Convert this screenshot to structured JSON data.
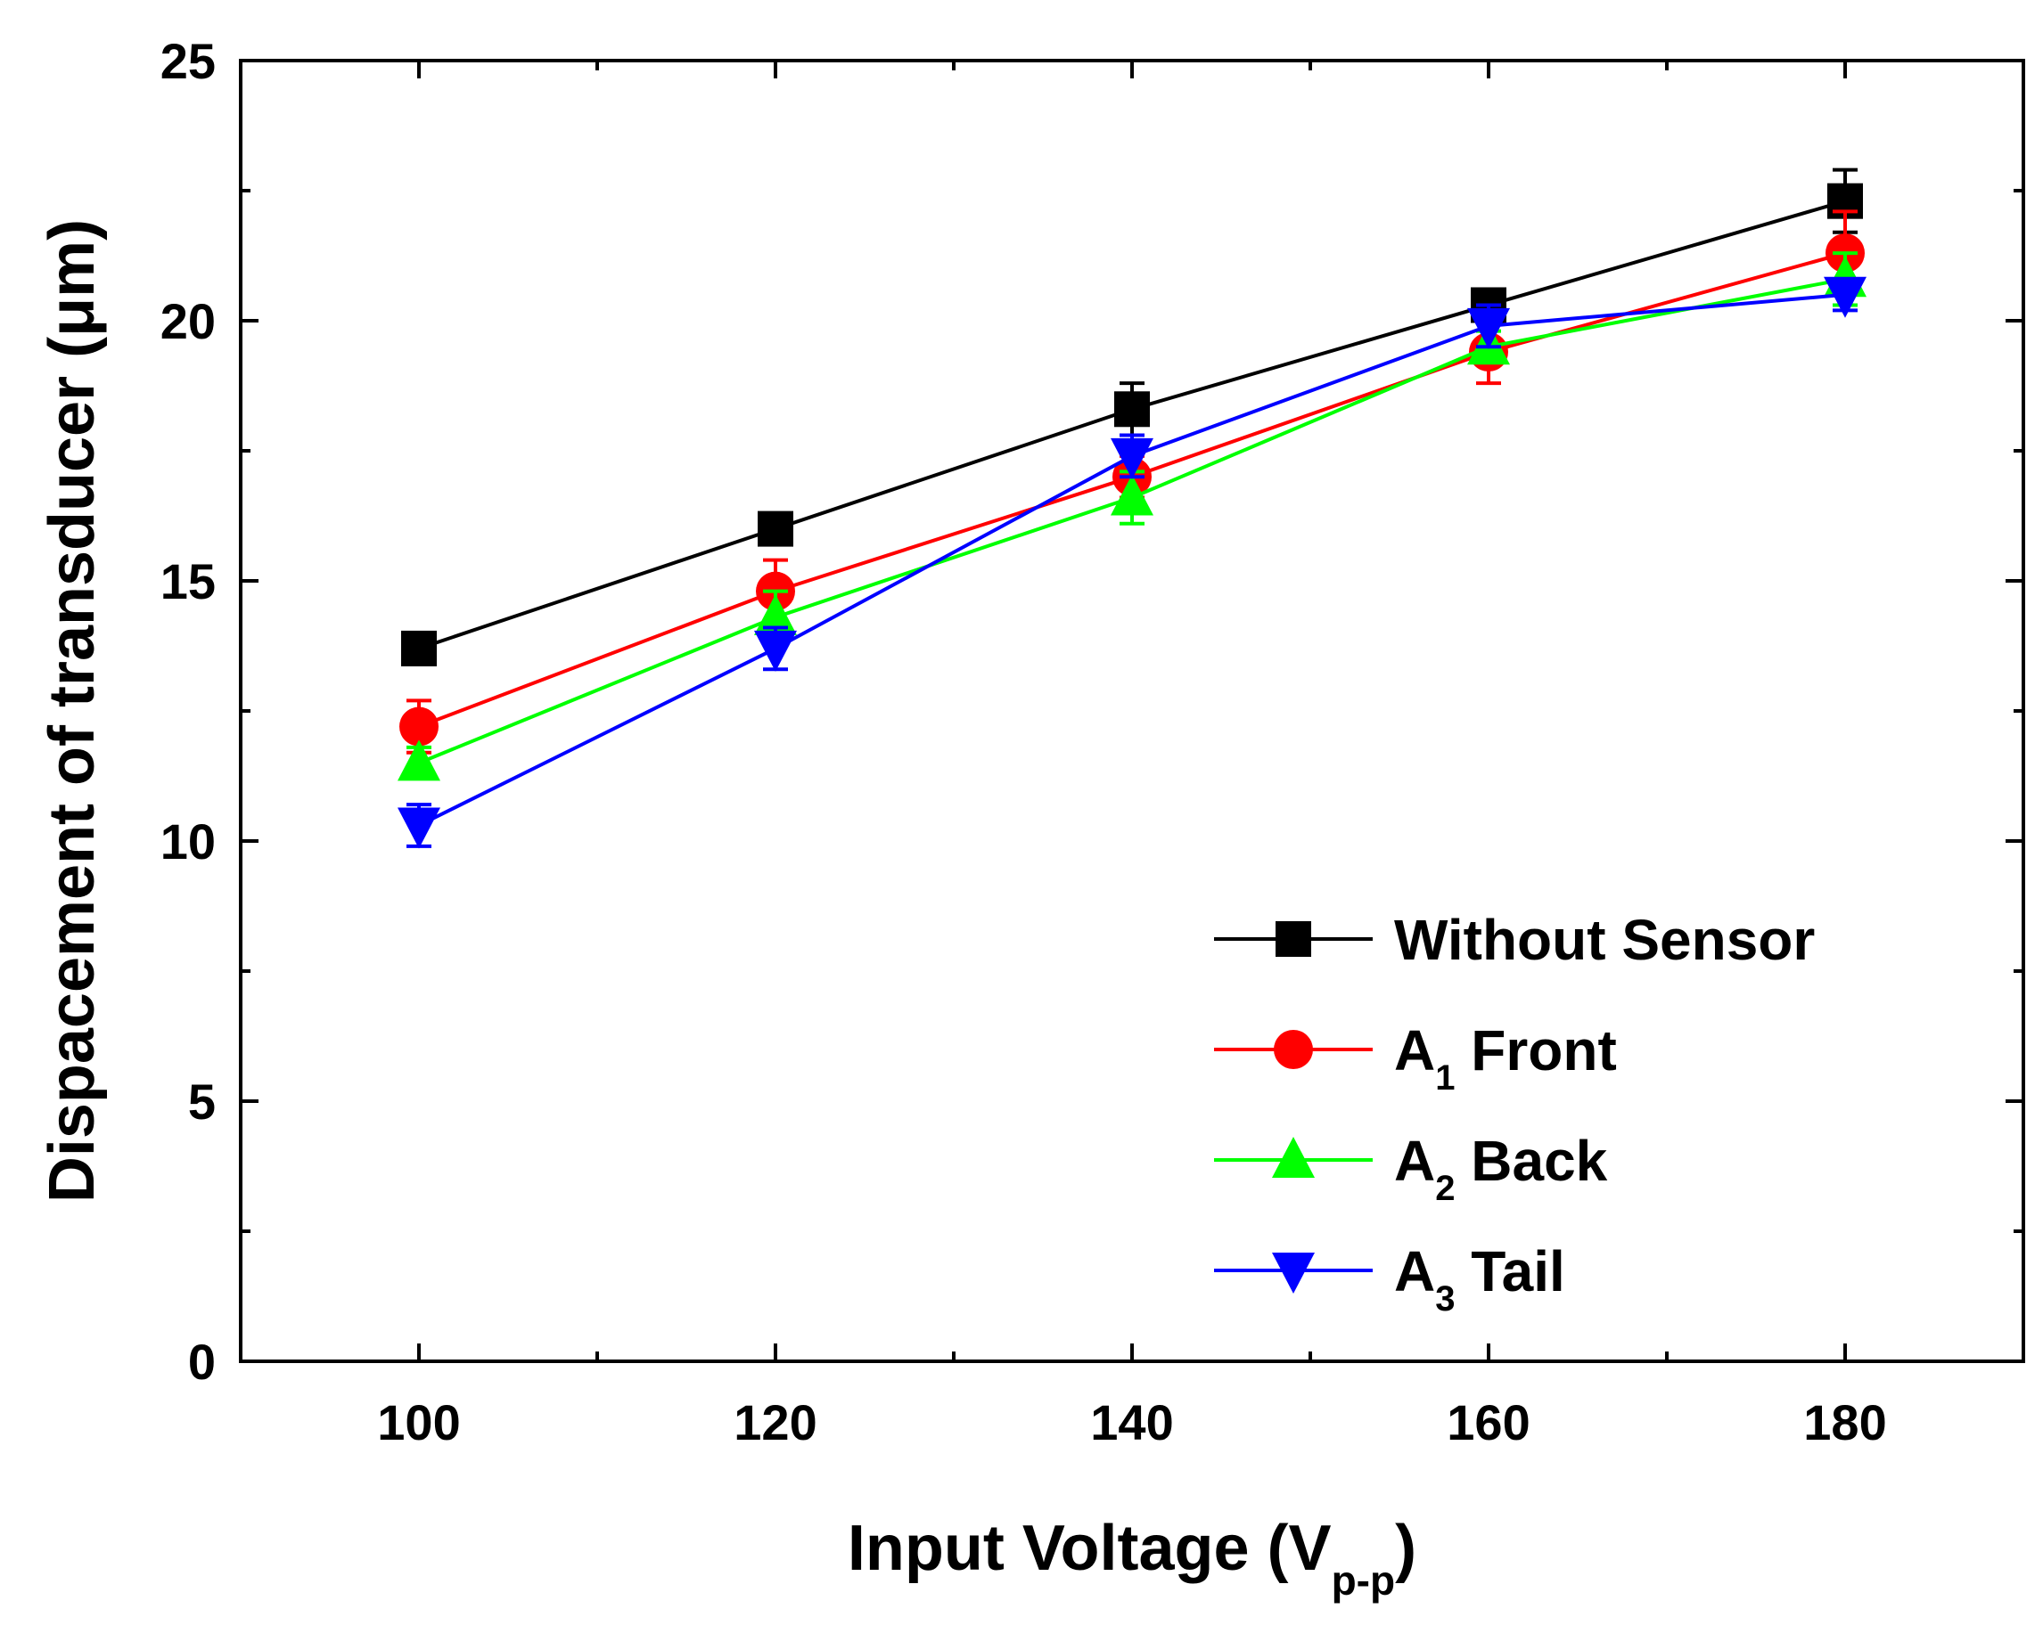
{
  "chart_data": {
    "type": "line",
    "title": "",
    "xlabel": "Input Voltage (V",
    "xlabel_sub": "p-p",
    "xlabel_close": ")",
    "ylabel": "Dispacement of transducer (μm)",
    "xlim": [
      90,
      190
    ],
    "ylim": [
      0,
      25
    ],
    "xticks": [
      100,
      120,
      140,
      160,
      180
    ],
    "yticks": [
      0,
      5,
      10,
      15,
      20,
      25
    ],
    "xminor": [
      110,
      130,
      150,
      170
    ],
    "yminor": [
      2.5,
      7.5,
      12.5,
      17.5,
      22.5
    ],
    "grid": false,
    "legend_position": "bottom-right",
    "x": [
      100,
      120,
      140,
      160,
      180
    ],
    "series": [
      {
        "name": "Without Sensor",
        "main": "Without Sensor",
        "sub": "",
        "tail": "",
        "color": "#000000",
        "marker": "square",
        "values": [
          13.7,
          16.0,
          18.3,
          20.3,
          22.3
        ],
        "errors": [
          0.2,
          0.2,
          0.5,
          0.2,
          0.6
        ]
      },
      {
        "name": "A1 Front",
        "main": "A",
        "sub": "1",
        "tail": " Front",
        "color": "#ff0000",
        "marker": "circle",
        "values": [
          12.2,
          14.8,
          17.0,
          19.4,
          21.3
        ],
        "errors": [
          0.5,
          0.6,
          0.4,
          0.6,
          0.8
        ]
      },
      {
        "name": "A2 Back",
        "main": "A",
        "sub": "2",
        "tail": " Back",
        "color": "#00ff00",
        "marker": "triangle-up",
        "values": [
          11.5,
          14.3,
          16.6,
          19.5,
          20.8
        ],
        "errors": [
          0.3,
          0.5,
          0.5,
          0.3,
          0.5
        ]
      },
      {
        "name": "A3 Tail",
        "main": "A",
        "sub": "3",
        "tail": " Tail",
        "color": "#0000ff",
        "marker": "triangle-down",
        "values": [
          10.3,
          13.7,
          17.4,
          19.9,
          20.5
        ],
        "errors": [
          0.4,
          0.4,
          0.4,
          0.4,
          0.3
        ]
      }
    ]
  }
}
